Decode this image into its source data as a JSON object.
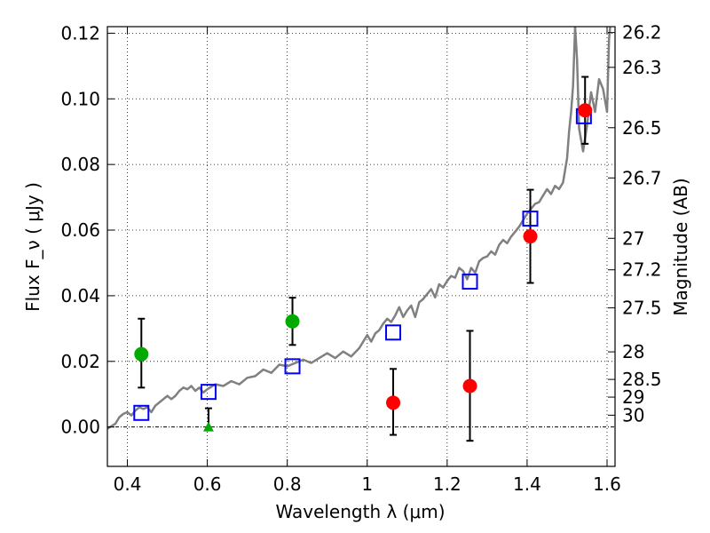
{
  "chart_data": {
    "type": "scatter",
    "title": "",
    "xlabel": "Wavelength  λ (μm)",
    "ylabel": "Flux  F_ν  ( μJy )",
    "ylabel_right": "Magnitude (AB)",
    "xlim": [
      0.35,
      1.62
    ],
    "ylim": [
      -0.012,
      0.122
    ],
    "x_ticks": [
      0.4,
      0.6,
      0.8,
      1.0,
      1.2,
      1.4,
      1.6
    ],
    "x_tick_labels": [
      "0.4",
      "0.6",
      "0.8",
      "1",
      "1.2",
      "1.4",
      "1.6"
    ],
    "y_ticks": [
      0.0,
      0.02,
      0.04,
      0.06,
      0.08,
      0.1,
      0.12
    ],
    "y_tick_labels": [
      "0.00",
      "0.02",
      "0.04",
      "0.06",
      "0.08",
      "0.10",
      "0.12"
    ],
    "right_ticks": [
      {
        "label": "26.2",
        "flux": 0.1202
      },
      {
        "label": "26.3",
        "flux": 0.1096
      },
      {
        "label": "26.5",
        "flux": 0.0912
      },
      {
        "label": "26.7",
        "flux": 0.0759
      },
      {
        "label": "27",
        "flux": 0.0575
      },
      {
        "label": "27.2",
        "flux": 0.0479
      },
      {
        "label": "27.5",
        "flux": 0.0363
      },
      {
        "label": "28",
        "flux": 0.0229
      },
      {
        "label": "28.5",
        "flux": 0.0145
      },
      {
        "label": "29",
        "flux": 0.0091
      },
      {
        "label": "30",
        "flux": 0.0036
      }
    ],
    "grid": true,
    "colors": {
      "model": "#808080",
      "model_points": "#0000ff",
      "green_points": "#00aa00",
      "red_points": "#ff0000",
      "errorbars": "#000000"
    },
    "model_spectrum": {
      "x": [
        0.35,
        0.37,
        0.38,
        0.39,
        0.4,
        0.41,
        0.42,
        0.43,
        0.44,
        0.45,
        0.46,
        0.47,
        0.48,
        0.49,
        0.5,
        0.51,
        0.52,
        0.53,
        0.54,
        0.55,
        0.56,
        0.57,
        0.58,
        0.59,
        0.6,
        0.62,
        0.64,
        0.66,
        0.68,
        0.7,
        0.72,
        0.74,
        0.76,
        0.78,
        0.8,
        0.82,
        0.84,
        0.86,
        0.88,
        0.9,
        0.92,
        0.94,
        0.96,
        0.98,
        1.0,
        1.01,
        1.02,
        1.03,
        1.04,
        1.05,
        1.06,
        1.07,
        1.08,
        1.09,
        1.1,
        1.11,
        1.12,
        1.13,
        1.14,
        1.15,
        1.16,
        1.17,
        1.18,
        1.19,
        1.2,
        1.21,
        1.22,
        1.23,
        1.24,
        1.25,
        1.26,
        1.27,
        1.28,
        1.29,
        1.3,
        1.31,
        1.32,
        1.33,
        1.34,
        1.35,
        1.36,
        1.37,
        1.38,
        1.39,
        1.4,
        1.41,
        1.42,
        1.43,
        1.44,
        1.45,
        1.46,
        1.47,
        1.48,
        1.49,
        1.5,
        1.505,
        1.51,
        1.515,
        1.52,
        1.525,
        1.53,
        1.54,
        1.55,
        1.56,
        1.57,
        1.58,
        1.59,
        1.6,
        1.605,
        1.61
      ],
      "y": [
        -0.0005,
        0.001,
        0.003,
        0.004,
        0.0045,
        0.0035,
        0.005,
        0.006,
        0.0055,
        0.006,
        0.0045,
        0.0065,
        0.0075,
        0.0085,
        0.0095,
        0.0085,
        0.0095,
        0.011,
        0.012,
        0.0115,
        0.0125,
        0.011,
        0.012,
        0.0105,
        0.0115,
        0.013,
        0.0125,
        0.014,
        0.013,
        0.015,
        0.0155,
        0.0175,
        0.0165,
        0.019,
        0.0185,
        0.0195,
        0.0205,
        0.0195,
        0.021,
        0.0225,
        0.021,
        0.023,
        0.0215,
        0.024,
        0.028,
        0.026,
        0.0285,
        0.0295,
        0.0315,
        0.033,
        0.032,
        0.034,
        0.0365,
        0.0335,
        0.0355,
        0.037,
        0.0335,
        0.038,
        0.039,
        0.0405,
        0.042,
        0.0395,
        0.0435,
        0.0425,
        0.0445,
        0.046,
        0.0455,
        0.0485,
        0.0475,
        0.045,
        0.0485,
        0.047,
        0.0505,
        0.0515,
        0.052,
        0.0535,
        0.0525,
        0.0555,
        0.057,
        0.056,
        0.058,
        0.0595,
        0.061,
        0.063,
        0.065,
        0.0665,
        0.068,
        0.0685,
        0.0705,
        0.0725,
        0.071,
        0.0735,
        0.0725,
        0.0745,
        0.082,
        0.09,
        0.096,
        0.104,
        0.122,
        0.112,
        0.091,
        0.084,
        0.092,
        0.102,
        0.096,
        0.106,
        0.103,
        0.096,
        0.118,
        0.125
      ]
    },
    "model_points": {
      "x": [
        0.435,
        0.603,
        0.813,
        1.065,
        1.257,
        1.408,
        1.542
      ],
      "y": [
        0.0043,
        0.0107,
        0.0185,
        0.0288,
        0.0443,
        0.0635,
        0.0947
      ]
    },
    "green_points": {
      "x": [
        0.435,
        0.813
      ],
      "y": [
        0.0222,
        0.0322
      ],
      "err_low": [
        0.0102,
        0.0072
      ],
      "err_high": [
        0.0108,
        0.0072
      ]
    },
    "green_upper_limit": {
      "x": [
        0.603
      ],
      "y": [
        0.0
      ],
      "err_high": [
        0.0057
      ]
    },
    "red_points": {
      "x": [
        1.065,
        1.257,
        1.408,
        1.545
      ],
      "y": [
        0.0074,
        0.0125,
        0.0581,
        0.0965
      ],
      "err_low": [
        0.0098,
        0.0167,
        0.0142,
        0.0102
      ],
      "err_high": [
        0.0103,
        0.0168,
        0.0142,
        0.0102
      ]
    }
  }
}
